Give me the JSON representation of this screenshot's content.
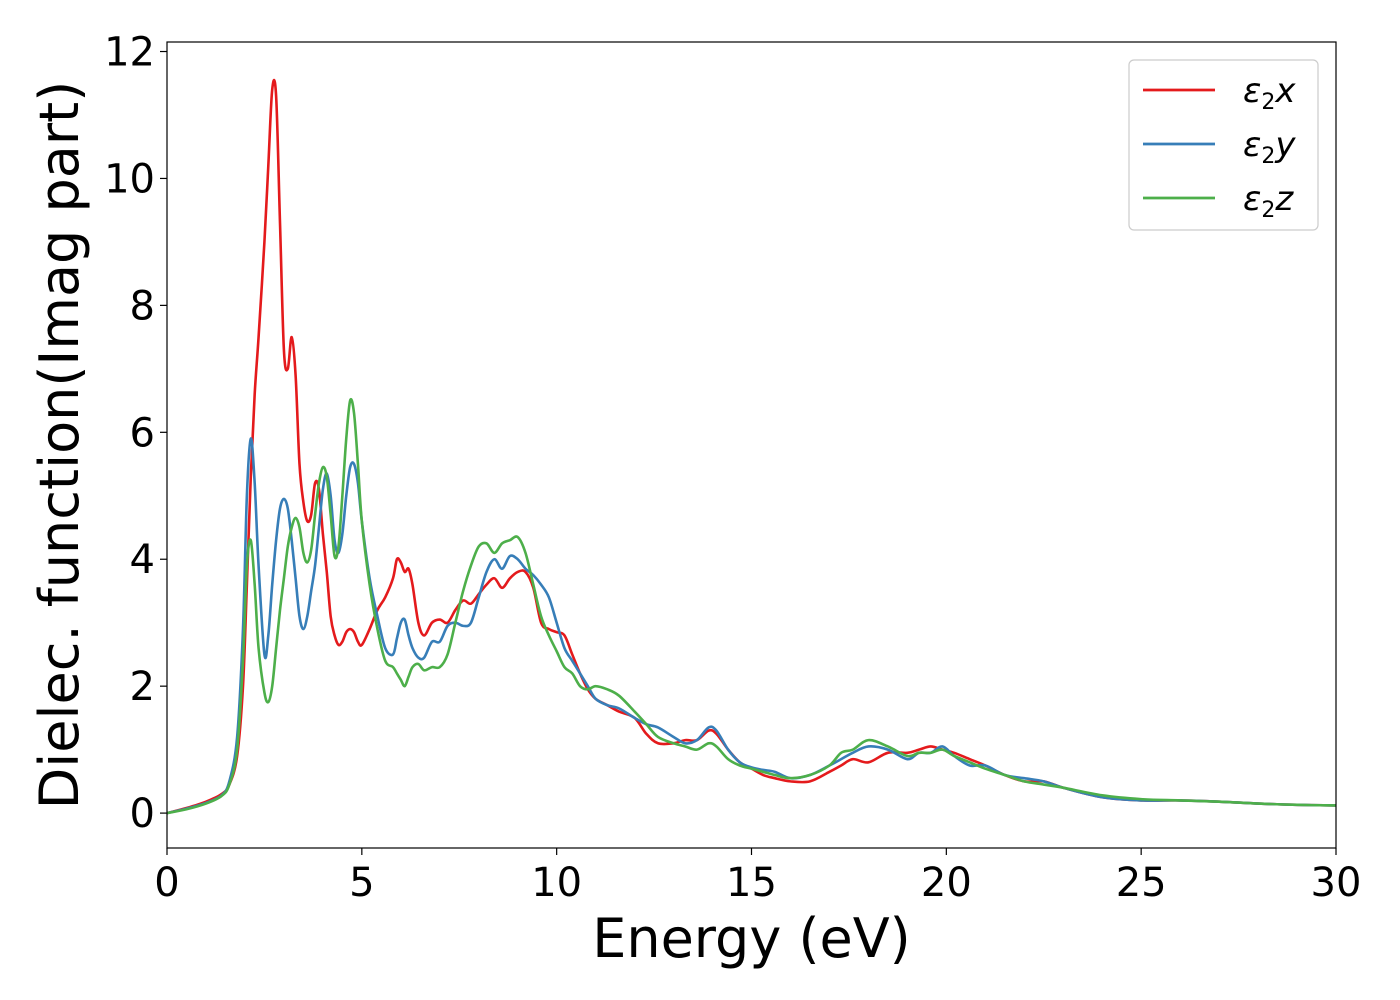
{
  "chart_data": {
    "type": "line",
    "xlabel": "Energy (eV)",
    "ylabel": "Dielec. function(Imag part)",
    "xlim": [
      0,
      30
    ],
    "ylim": [
      -0.55,
      12.15
    ],
    "xticks": [
      0,
      5,
      10,
      15,
      20,
      25,
      30
    ],
    "yticks": [
      0,
      2,
      4,
      6,
      8,
      10,
      12
    ],
    "grid": false,
    "legend_position": "top-right",
    "series": [
      {
        "name": "ε2x",
        "name_main": "ε",
        "name_sub": "2",
        "name_tail": "x",
        "color": "#e41a1c",
        "x": [
          0,
          0.5,
          1.0,
          1.4,
          1.6,
          1.8,
          1.95,
          2.05,
          2.15,
          2.25,
          2.35,
          2.5,
          2.6,
          2.7,
          2.8,
          2.9,
          3.0,
          3.1,
          3.2,
          3.3,
          3.4,
          3.5,
          3.6,
          3.7,
          3.8,
          3.9,
          4.0,
          4.1,
          4.2,
          4.3,
          4.4,
          4.5,
          4.6,
          4.7,
          4.8,
          4.9,
          5.0,
          5.2,
          5.4,
          5.6,
          5.8,
          5.9,
          6.0,
          6.1,
          6.2,
          6.3,
          6.45,
          6.6,
          6.8,
          7.0,
          7.2,
          7.4,
          7.6,
          7.8,
          8.0,
          8.2,
          8.4,
          8.6,
          8.8,
          9.0,
          9.2,
          9.4,
          9.6,
          9.8,
          10.0,
          10.2,
          10.4,
          10.6,
          10.8,
          11.0,
          11.3,
          11.6,
          12.0,
          12.3,
          12.6,
          13.0,
          13.3,
          13.6,
          13.9,
          14.1,
          14.4,
          14.7,
          15.0,
          15.3,
          15.6,
          16.0,
          16.5,
          17.0,
          17.3,
          17.6,
          18.0,
          18.5,
          19.0,
          19.3,
          19.6,
          19.9,
          20.2,
          20.6,
          21.0,
          21.5,
          22.0,
          22.5,
          23.0,
          24.0,
          25.0,
          26.0,
          27.0,
          28.0,
          29.0,
          30.0
        ],
        "y": [
          0,
          0.08,
          0.18,
          0.3,
          0.45,
          0.9,
          2.0,
          3.6,
          5.3,
          6.6,
          7.5,
          9.0,
          10.2,
          11.4,
          11.3,
          9.3,
          7.3,
          7.0,
          7.5,
          6.9,
          5.5,
          4.9,
          4.6,
          4.7,
          5.2,
          5.1,
          4.4,
          3.8,
          3.1,
          2.8,
          2.65,
          2.7,
          2.85,
          2.9,
          2.85,
          2.7,
          2.65,
          2.9,
          3.2,
          3.4,
          3.7,
          4.0,
          3.95,
          3.8,
          3.85,
          3.6,
          3.0,
          2.8,
          3.0,
          3.05,
          3.0,
          3.2,
          3.35,
          3.3,
          3.45,
          3.6,
          3.7,
          3.55,
          3.7,
          3.8,
          3.8,
          3.55,
          3.0,
          2.9,
          2.85,
          2.8,
          2.5,
          2.2,
          1.95,
          1.8,
          1.7,
          1.6,
          1.5,
          1.25,
          1.1,
          1.1,
          1.15,
          1.15,
          1.3,
          1.25,
          1.0,
          0.8,
          0.7,
          0.6,
          0.55,
          0.5,
          0.5,
          0.65,
          0.75,
          0.85,
          0.8,
          0.95,
          0.95,
          1.0,
          1.05,
          1.0,
          0.95,
          0.85,
          0.75,
          0.6,
          0.5,
          0.5,
          0.4,
          0.25,
          0.2,
          0.2,
          0.18,
          0.15,
          0.13,
          0.12
        ]
      },
      {
        "name": "ε2y",
        "name_main": "ε",
        "name_sub": "2",
        "name_tail": "y",
        "color": "#377eb8",
        "x": [
          0,
          0.5,
          1.0,
          1.4,
          1.6,
          1.8,
          1.95,
          2.05,
          2.15,
          2.25,
          2.35,
          2.5,
          2.6,
          2.7,
          2.8,
          2.9,
          3.0,
          3.1,
          3.2,
          3.3,
          3.4,
          3.5,
          3.6,
          3.7,
          3.8,
          3.9,
          4.0,
          4.1,
          4.2,
          4.3,
          4.4,
          4.5,
          4.6,
          4.7,
          4.8,
          4.9,
          5.0,
          5.2,
          5.4,
          5.6,
          5.8,
          5.9,
          6.0,
          6.1,
          6.2,
          6.3,
          6.45,
          6.6,
          6.8,
          7.0,
          7.2,
          7.4,
          7.6,
          7.8,
          8.0,
          8.2,
          8.4,
          8.6,
          8.8,
          9.0,
          9.2,
          9.4,
          9.6,
          9.8,
          10.0,
          10.2,
          10.4,
          10.6,
          10.8,
          11.0,
          11.3,
          11.6,
          12.0,
          12.3,
          12.6,
          13.0,
          13.3,
          13.6,
          13.9,
          14.1,
          14.4,
          14.7,
          15.0,
          15.3,
          15.6,
          16.0,
          16.5,
          17.0,
          17.3,
          17.6,
          18.0,
          18.5,
          19.0,
          19.3,
          19.6,
          19.9,
          20.2,
          20.6,
          21.0,
          21.5,
          22.0,
          22.5,
          23.0,
          24.0,
          25.0,
          26.0,
          27.0,
          28.0,
          29.0,
          30.0
        ],
        "y": [
          0,
          0.07,
          0.16,
          0.28,
          0.5,
          1.2,
          2.9,
          5.0,
          5.9,
          5.2,
          3.9,
          2.5,
          2.8,
          3.6,
          4.3,
          4.8,
          4.95,
          4.8,
          4.3,
          3.7,
          3.1,
          2.9,
          3.1,
          3.5,
          3.9,
          4.5,
          5.1,
          5.35,
          5.0,
          4.3,
          4.1,
          4.4,
          5.0,
          5.45,
          5.5,
          5.2,
          4.6,
          3.7,
          3.1,
          2.6,
          2.5,
          2.75,
          3.0,
          3.05,
          2.8,
          2.6,
          2.45,
          2.45,
          2.7,
          2.7,
          2.95,
          3.0,
          2.95,
          3.0,
          3.4,
          3.8,
          4.0,
          3.85,
          4.05,
          4.0,
          3.85,
          3.75,
          3.6,
          3.4,
          3.0,
          2.6,
          2.4,
          2.2,
          2.0,
          1.8,
          1.7,
          1.65,
          1.5,
          1.4,
          1.35,
          1.2,
          1.1,
          1.15,
          1.35,
          1.3,
          1.0,
          0.8,
          0.72,
          0.68,
          0.65,
          0.55,
          0.6,
          0.75,
          0.85,
          0.95,
          1.05,
          1.0,
          0.85,
          0.95,
          0.95,
          1.05,
          0.9,
          0.75,
          0.75,
          0.6,
          0.55,
          0.5,
          0.4,
          0.25,
          0.2,
          0.2,
          0.18,
          0.15,
          0.13,
          0.12
        ]
      },
      {
        "name": "ε2z",
        "name_main": "ε",
        "name_sub": "2",
        "name_tail": "z",
        "color": "#4daf4a",
        "x": [
          0,
          0.5,
          1.0,
          1.4,
          1.6,
          1.8,
          1.95,
          2.05,
          2.15,
          2.25,
          2.35,
          2.5,
          2.6,
          2.7,
          2.8,
          2.9,
          3.0,
          3.1,
          3.2,
          3.3,
          3.4,
          3.5,
          3.6,
          3.7,
          3.8,
          3.9,
          4.0,
          4.1,
          4.2,
          4.3,
          4.4,
          4.5,
          4.6,
          4.7,
          4.8,
          4.9,
          5.0,
          5.2,
          5.4,
          5.6,
          5.8,
          5.9,
          6.0,
          6.1,
          6.2,
          6.3,
          6.45,
          6.6,
          6.8,
          7.0,
          7.2,
          7.4,
          7.6,
          7.8,
          8.0,
          8.2,
          8.4,
          8.6,
          8.8,
          9.0,
          9.2,
          9.4,
          9.6,
          9.8,
          10.0,
          10.2,
          10.4,
          10.6,
          10.8,
          11.0,
          11.3,
          11.6,
          12.0,
          12.3,
          12.6,
          13.0,
          13.3,
          13.6,
          13.9,
          14.1,
          14.4,
          14.7,
          15.0,
          15.3,
          15.6,
          16.0,
          16.5,
          17.0,
          17.3,
          17.6,
          18.0,
          18.5,
          19.0,
          19.3,
          19.6,
          19.9,
          20.2,
          20.6,
          21.0,
          21.5,
          22.0,
          22.5,
          23.0,
          24.0,
          25.0,
          26.0,
          27.0,
          28.0,
          29.0,
          30.0
        ],
        "y": [
          0,
          0.06,
          0.15,
          0.27,
          0.45,
          1.0,
          2.4,
          3.9,
          4.3,
          3.6,
          2.6,
          1.9,
          1.75,
          2.0,
          2.6,
          3.2,
          3.7,
          4.2,
          4.5,
          4.65,
          4.5,
          4.1,
          3.95,
          4.15,
          4.7,
          5.2,
          5.45,
          5.3,
          4.7,
          4.05,
          4.2,
          5.0,
          5.9,
          6.5,
          6.3,
          5.5,
          4.6,
          3.6,
          2.9,
          2.4,
          2.3,
          2.2,
          2.1,
          2.0,
          2.15,
          2.3,
          2.35,
          2.25,
          2.3,
          2.3,
          2.5,
          3.0,
          3.5,
          3.9,
          4.2,
          4.25,
          4.1,
          4.25,
          4.3,
          4.35,
          4.1,
          3.6,
          3.1,
          2.8,
          2.55,
          2.3,
          2.2,
          2.0,
          1.95,
          2.0,
          1.95,
          1.85,
          1.6,
          1.4,
          1.2,
          1.1,
          1.05,
          1.0,
          1.1,
          1.05,
          0.85,
          0.75,
          0.7,
          0.65,
          0.6,
          0.55,
          0.6,
          0.75,
          0.95,
          1.0,
          1.15,
          1.05,
          0.9,
          0.95,
          0.95,
          1.0,
          0.9,
          0.8,
          0.7,
          0.6,
          0.5,
          0.45,
          0.4,
          0.28,
          0.22,
          0.2,
          0.18,
          0.15,
          0.13,
          0.12
        ]
      }
    ]
  }
}
